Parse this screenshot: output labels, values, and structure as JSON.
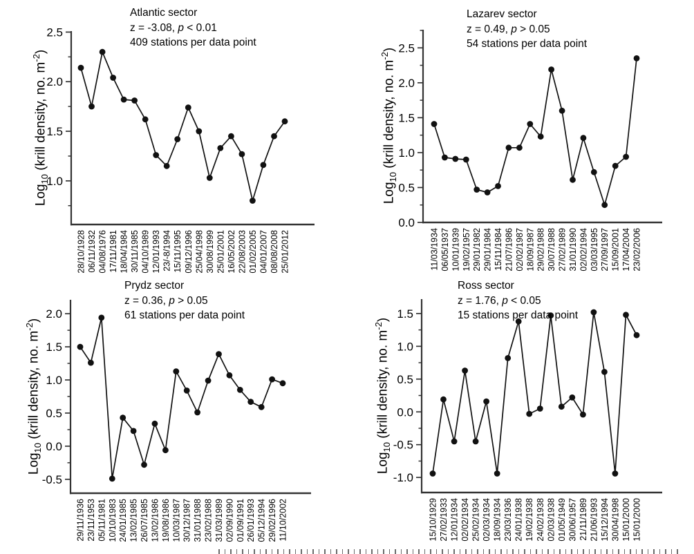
{
  "figure": {
    "background": "#ffffff",
    "text_color": "#000000",
    "axis_color": "#333333",
    "series_color": "#111111"
  },
  "ylabel_parts": {
    "log": "Log",
    "sub": "10",
    "body": " (krill density, no. m",
    "sup": "-2",
    "close": ")"
  },
  "chart_data": [
    {
      "type": "line",
      "sector": "Atlantic",
      "title": "Atlantic sector",
      "stats_z": "z = -3.08, ",
      "stats_p": "p",
      "stats_tail": " < 0.01",
      "stations_note": "409 stations per data point",
      "xlabel": "",
      "ylabel": "Log10 (krill density, no. m-2)",
      "legend_position": "none",
      "grid": false,
      "ylim": [
        0.56,
        2.51
      ],
      "yticks": [
        1.0,
        1.5,
        2.0,
        2.5
      ],
      "categories": [
        "28/10/1928",
        "06/11/1932",
        "04/08/1976",
        "17/11/1981",
        "18/04/1984",
        "30/11/1985",
        "04/10/1989",
        "12/01/1993",
        "23/-8/1994",
        "15/11/1995",
        "09/12/1996",
        "25/04/1998",
        "30/08/1999",
        "25/01/2001",
        "16/05/2002",
        "22/08/2003",
        "01/02/2005",
        "04/01/2007",
        "08/08/2008",
        "25/01/2012"
      ],
      "values": [
        2.14,
        1.75,
        2.3,
        2.04,
        1.82,
        1.81,
        1.62,
        1.26,
        1.15,
        1.42,
        1.74,
        1.5,
        1.03,
        1.33,
        1.45,
        1.27,
        0.8,
        1.16,
        1.45,
        1.6
      ]
    },
    {
      "type": "line",
      "sector": "Lazarev",
      "title": "Lazarev sector",
      "stats_z": "z = 0.49, ",
      "stats_p": "p",
      "stats_tail": " > 0.05",
      "stations_note": "54 stations per data point",
      "xlabel": "",
      "ylabel": "Log10 (krill density, no. m-2)",
      "legend_position": "none",
      "grid": false,
      "ylim": [
        0.0,
        2.76
      ],
      "yticks": [
        0.0,
        0.5,
        1.0,
        1.5,
        2.0,
        2.5
      ],
      "categories": [
        "11/03/1934",
        "06/05/1937",
        "10/01/1939",
        "19/02/1957",
        "29/01/1982",
        "29/01/1984",
        "15/11/1984",
        "21/07/1986",
        "02/02/1987",
        "18/09/1987",
        "29/02/1988",
        "30/07/1988",
        "27/02/1989",
        "31/01/1990",
        "02/02/1994",
        "03/03/1995",
        "27/09/1997",
        "15/09/2001",
        "17/04/2004",
        "23/02/2006"
      ],
      "values": [
        1.41,
        0.93,
        0.91,
        0.9,
        0.47,
        0.43,
        0.52,
        1.07,
        1.07,
        1.41,
        1.23,
        2.19,
        1.6,
        0.61,
        1.21,
        0.72,
        0.25,
        0.81,
        0.94,
        2.35
      ]
    },
    {
      "type": "line",
      "sector": "Prydz",
      "title": "Prydz sector",
      "stats_z": "z = 0.36, ",
      "stats_p": "p",
      "stats_tail": " > 0.05",
      "stations_note": "61 stations per data point",
      "xlabel": "",
      "ylabel": "Log10 (krill density, no. m-2)",
      "legend_position": "none",
      "grid": false,
      "ylim": [
        -0.71,
        2.21
      ],
      "yticks": [
        -0.5,
        0.0,
        0.5,
        1.0,
        1.5,
        2.0
      ],
      "categories": [
        "29/11/1936",
        "23/11/1953",
        "05/11/1981",
        "10/10/1983",
        "24/01/1985",
        "13/02/1985",
        "26/07/1985",
        "13/02/1986",
        "19/08/1986",
        "10/03/1987",
        "30/12/1987",
        "31/01/1988",
        "23/02/1988",
        "31/03/1989",
        "02/09/1990",
        "01/09/1991",
        "26/01/1993",
        "05/12/1994",
        "29/02/1996",
        "11/10/2002"
      ],
      "values": [
        1.5,
        1.26,
        1.94,
        -0.49,
        0.43,
        0.23,
        -0.28,
        0.34,
        -0.06,
        1.13,
        0.84,
        0.51,
        0.99,
        1.39,
        1.07,
        0.85,
        0.67,
        0.59,
        1.01,
        0.95
      ]
    },
    {
      "type": "line",
      "sector": "Ross",
      "title": "Ross sector",
      "stats_z": "z = 1.76, ",
      "stats_p": "p",
      "stats_tail": " < 0.05",
      "stations_note": "15 stations per data point",
      "xlabel": "",
      "ylabel": "Log10 (krill density, no. m-2)",
      "legend_position": "none",
      "grid": false,
      "ylim": [
        -1.23,
        1.72
      ],
      "yticks": [
        -1.0,
        -0.5,
        0.0,
        0.5,
        1.0,
        1.5
      ],
      "categories": [
        "15/10/1929",
        "27/02/1933",
        "12/01/1934",
        "02/02/1934",
        "25/02/1934",
        "02/03/1934",
        "18/09/1934",
        "23/03/1936",
        "24/01/1938",
        "19/02/1938",
        "24/02/1938",
        "02/03/1938",
        "01/05/1949",
        "30/06/1957",
        "21/11/1989",
        "21/06/1993",
        "15/12/1994",
        "30/04/1998",
        "15/01/2000",
        "15/01/2000"
      ],
      "values": [
        -0.94,
        0.19,
        -0.45,
        0.63,
        -0.45,
        0.16,
        -0.94,
        0.82,
        1.38,
        -0.03,
        0.05,
        1.47,
        0.08,
        0.22,
        -0.04,
        1.52,
        0.61,
        -0.94,
        1.48,
        1.17
      ]
    }
  ]
}
